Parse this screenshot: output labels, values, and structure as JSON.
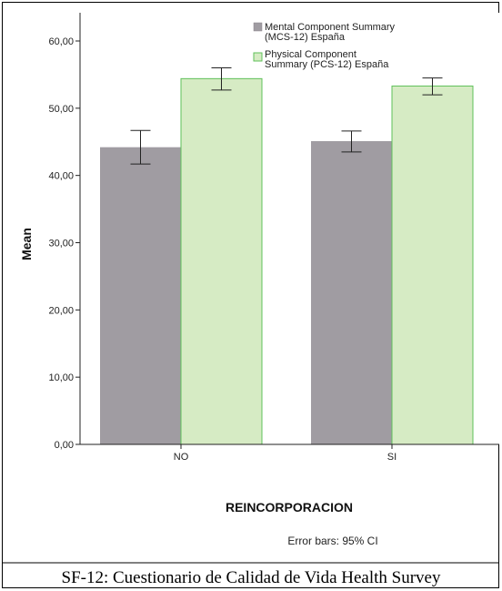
{
  "chart_data": {
    "type": "bar",
    "categories": [
      "NO",
      "SI"
    ],
    "series": [
      {
        "name": "Mental Component Summary (MCS-12) España",
        "legend_lines": [
          "Mental Component Summary",
          "(MCS-12) España"
        ],
        "color": "#a09ca2",
        "values": [
          44.2,
          45.1
        ],
        "ci_low": [
          41.7,
          43.5
        ],
        "ci_high": [
          46.7,
          46.6
        ]
      },
      {
        "name": "Physical Component Summary (PCS-12) España",
        "legend_lines": [
          "Physical Component",
          "Summary (PCS-12) España"
        ],
        "color": "#d6ebc4",
        "stroke": "#5fc05a",
        "values": [
          54.4,
          53.3
        ],
        "ci_low": [
          52.7,
          52.0
        ],
        "ci_high": [
          56.0,
          54.5
        ]
      }
    ],
    "ylabel": "Mean",
    "xlabel": "REINCORPORACION",
    "ylim": [
      0,
      62
    ],
    "yticks": [
      0,
      10,
      20,
      30,
      40,
      50,
      60
    ],
    "ytick_labels": [
      "0,00",
      "10,00",
      "20,00",
      "30,00",
      "40,00",
      "50,00",
      "60,00"
    ],
    "grid": false,
    "legend_position": "top-right",
    "note": "Error bars: 95% CI"
  },
  "caption": "SF-12: Cuestionario de Calidad de Vida Health Survey"
}
